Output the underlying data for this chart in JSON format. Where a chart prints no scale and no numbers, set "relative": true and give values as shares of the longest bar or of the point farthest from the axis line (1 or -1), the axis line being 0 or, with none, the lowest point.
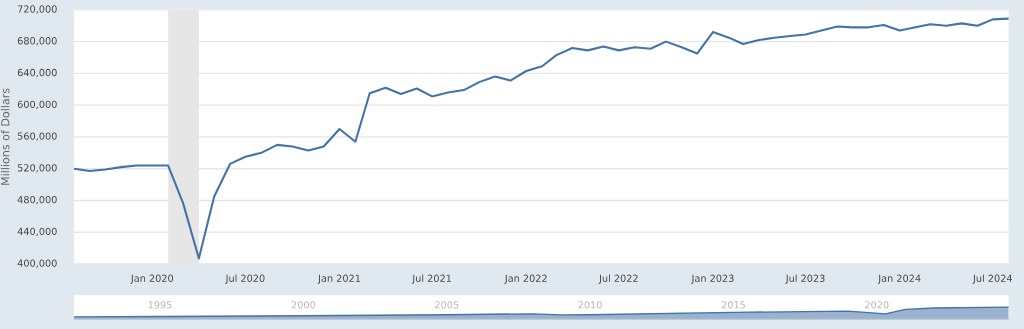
{
  "chart_data": [
    {
      "type": "line",
      "ylabel": "Millions of Dollars",
      "x": [
        "2019-08",
        "2019-09",
        "2019-10",
        "2019-11",
        "2019-12",
        "2020-01",
        "2020-02",
        "2020-03",
        "2020-04",
        "2020-05",
        "2020-06",
        "2020-07",
        "2020-08",
        "2020-09",
        "2020-10",
        "2020-11",
        "2020-12",
        "2021-01",
        "2021-02",
        "2021-03",
        "2021-04",
        "2021-05",
        "2021-06",
        "2021-07",
        "2021-08",
        "2021-09",
        "2021-10",
        "2021-11",
        "2021-12",
        "2022-01",
        "2022-02",
        "2022-03",
        "2022-04",
        "2022-05",
        "2022-06",
        "2022-07",
        "2022-08",
        "2022-09",
        "2022-10",
        "2022-11",
        "2022-12",
        "2023-01",
        "2023-02",
        "2023-03",
        "2023-04",
        "2023-05",
        "2023-06",
        "2023-07",
        "2023-08",
        "2023-09",
        "2023-10",
        "2023-11",
        "2023-12",
        "2024-01",
        "2024-02",
        "2024-03",
        "2024-04",
        "2024-05",
        "2024-06",
        "2024-07",
        "2024-08"
      ],
      "series": [
        {
          "color": "#4572a7",
          "values": [
            520000,
            517000,
            519000,
            522000,
            524000,
            524000,
            524000,
            477000,
            407000,
            485000,
            526000,
            535000,
            540000,
            550000,
            548000,
            543000,
            548000,
            570000,
            554000,
            615000,
            622000,
            614000,
            621000,
            611000,
            616000,
            619000,
            629000,
            636000,
            631000,
            643000,
            649000,
            663000,
            672000,
            669000,
            674000,
            669000,
            673000,
            671000,
            680000,
            673000,
            665000,
            692000,
            685000,
            677000,
            682000,
            685000,
            687000,
            689000,
            694000,
            699000,
            698000,
            698000,
            701000,
            694000,
            698000,
            702000,
            700000,
            703000,
            700000,
            708000,
            709000
          ]
        }
      ],
      "xlim": [
        "2019-08",
        "2024-08"
      ],
      "xticks": [
        {
          "value": "2020-01",
          "label": "Jan 2020"
        },
        {
          "value": "2020-07",
          "label": "Jul 2020"
        },
        {
          "value": "2021-01",
          "label": "Jan 2021"
        },
        {
          "value": "2021-07",
          "label": "Jul 2021"
        },
        {
          "value": "2022-01",
          "label": "Jan 2022"
        },
        {
          "value": "2022-07",
          "label": "Jul 2022"
        },
        {
          "value": "2023-01",
          "label": "Jan 2023"
        },
        {
          "value": "2023-07",
          "label": "Jul 2023"
        },
        {
          "value": "2024-01",
          "label": "Jan 2024"
        },
        {
          "value": "2024-07",
          "label": "Jul 2024"
        }
      ],
      "ylim": [
        400000,
        720000
      ],
      "yticks": [
        {
          "value": 400000,
          "label": "400,000"
        },
        {
          "value": 440000,
          "label": "440,000"
        },
        {
          "value": 480000,
          "label": "480,000"
        },
        {
          "value": 520000,
          "label": "520,000"
        },
        {
          "value": 560000,
          "label": "560,000"
        },
        {
          "value": 600000,
          "label": "600,000"
        },
        {
          "value": 640000,
          "label": "640,000"
        },
        {
          "value": 680000,
          "label": "680,000"
        },
        {
          "value": 720000,
          "label": "720,000"
        }
      ],
      "bands": [
        {
          "axis": "x",
          "from": "2020-02",
          "to": "2020-04",
          "color": "#e6e6e6"
        }
      ],
      "grid": "y",
      "legend": false,
      "line_style": "solid",
      "marker": "none"
    },
    {
      "type": "area",
      "relative": true,
      "tick_labels": "x",
      "x": [
        1992,
        1995,
        2000,
        2005,
        2008,
        2009,
        2010,
        2015,
        2019,
        2020.3,
        2021,
        2022,
        2024.6
      ],
      "series": [
        {
          "color": "#4572a7",
          "values": [
            0.19,
            0.22,
            0.28,
            0.37,
            0.44,
            0.35,
            0.37,
            0.56,
            0.67,
            0.44,
            0.81,
            0.93,
            1.0
          ]
        }
      ],
      "xlim": [
        1992,
        2024.6
      ],
      "xticks": [
        1995,
        2000,
        2005,
        2010,
        2015,
        2020
      ],
      "grid": false,
      "legend": false
    }
  ]
}
